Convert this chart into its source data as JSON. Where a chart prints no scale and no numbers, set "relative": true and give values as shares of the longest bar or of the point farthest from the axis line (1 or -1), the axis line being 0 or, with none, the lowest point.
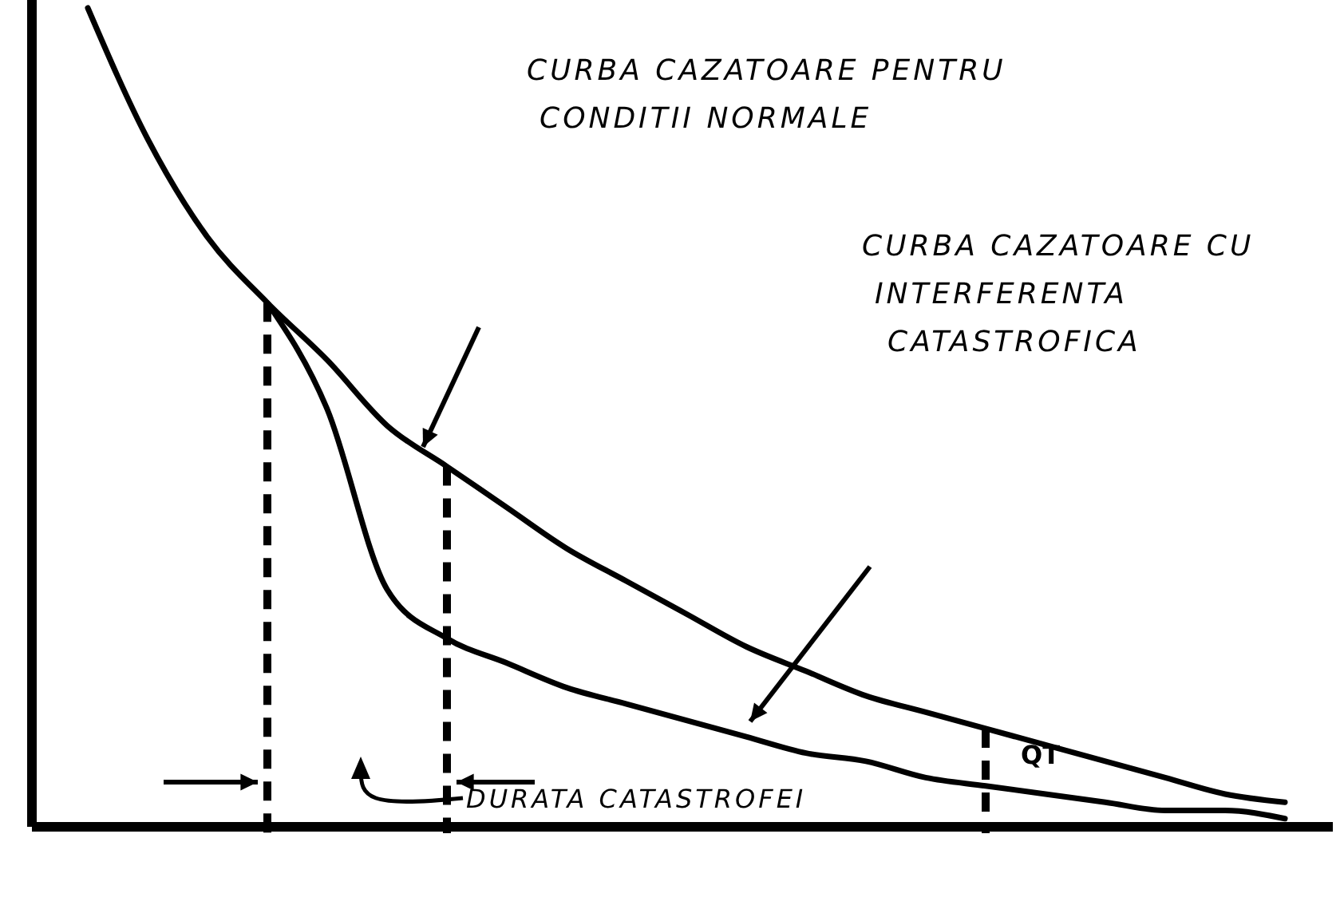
{
  "chart_data": {
    "type": "line",
    "relative": true,
    "categories": [
      null,
      null,
      null,
      null,
      null,
      null,
      null,
      null,
      null,
      null,
      null,
      null,
      null,
      null,
      null,
      null,
      null,
      null,
      null,
      null,
      null
    ],
    "series": [
      {
        "color": "#000000",
        "values": [
          1.0,
          0.84,
          0.72,
          0.64,
          0.57,
          0.49,
          0.44,
          0.39,
          0.34,
          0.3,
          0.26,
          0.22,
          0.19,
          0.16,
          0.14,
          0.12,
          0.1,
          0.08,
          0.06,
          0.04,
          0.03
        ]
      },
      {
        "color": "#000000",
        "values": [
          null,
          null,
          null,
          0.64,
          0.51,
          0.29,
          0.23,
          0.2,
          0.17,
          0.15,
          0.13,
          0.11,
          0.09,
          0.08,
          0.06,
          0.05,
          0.04,
          0.03,
          0.02,
          0.02,
          0.01
        ]
      }
    ],
    "annotations": [
      "QT",
      "DURATA CATASTROFEI",
      "CURBA CAZATOARE PENTRU CONDITII NORMALE",
      "CURBA CAZATOARE CU INTERFERENTA CATASTROFICA"
    ],
    "line_style": "solid",
    "marker": "none",
    "grid": false
  }
}
